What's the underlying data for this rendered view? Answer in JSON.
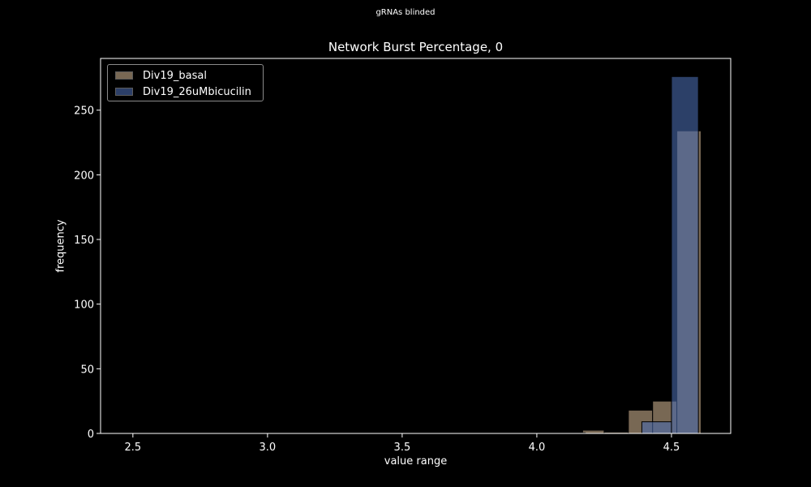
{
  "suptitle": "gRNAs blinded",
  "chart_data": {
    "type": "bar",
    "title": "Network Burst Percentage, 0",
    "xlabel": "value range",
    "ylabel": "frequency",
    "xlim": [
      2.38,
      4.72
    ],
    "ylim": [
      0,
      290
    ],
    "xticks": [
      "2.5",
      "3.0",
      "3.5",
      "4.0",
      "4.5"
    ],
    "yticks": [
      "0",
      "50",
      "100",
      "150",
      "200",
      "250"
    ],
    "grid": false,
    "legend_position": "top-left",
    "series": [
      {
        "name": "Div19_basal",
        "color": "#c8ad8c",
        "bins": [
          {
            "x0": 2.41,
            "x1": 2.51,
            "value": 0
          },
          {
            "x0": 2.86,
            "x1": 2.94,
            "value": 0.5
          },
          {
            "x0": 4.17,
            "x1": 4.25,
            "value": 2.5
          },
          {
            "x0": 4.25,
            "x1": 4.34,
            "value": 1
          },
          {
            "x0": 4.34,
            "x1": 4.43,
            "value": 18
          },
          {
            "x0": 4.43,
            "x1": 4.52,
            "value": 25
          },
          {
            "x0": 4.52,
            "x1": 4.61,
            "value": 234
          }
        ]
      },
      {
        "name": "Div19_26uMbicucilin",
        "color": "#4a6aae",
        "bins": [
          {
            "x0": 2.5,
            "x1": 2.6,
            "value": 0.5
          },
          {
            "x0": 4.08,
            "x1": 4.18,
            "value": 0.5
          },
          {
            "x0": 4.39,
            "x1": 4.5,
            "value": 9
          },
          {
            "x0": 4.5,
            "x1": 4.6,
            "value": 276
          }
        ]
      }
    ]
  }
}
